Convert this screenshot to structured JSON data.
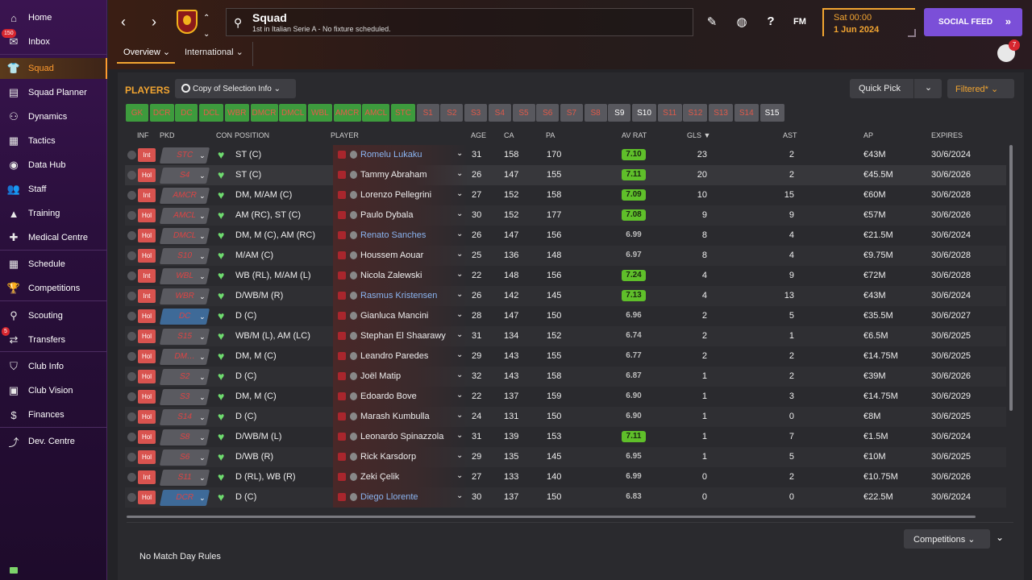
{
  "sidebar": {
    "items": [
      {
        "label": "Home",
        "icon": "home-icon",
        "glyph": "⌂"
      },
      {
        "label": "Inbox",
        "icon": "inbox-icon",
        "glyph": "✉",
        "badge": "150"
      },
      {
        "label": "Squad",
        "icon": "shirt-icon",
        "glyph": "👕",
        "active": true
      },
      {
        "label": "Squad Planner",
        "icon": "clipboard-icon",
        "glyph": "▤"
      },
      {
        "label": "Dynamics",
        "icon": "dynamics-icon",
        "glyph": "⚇"
      },
      {
        "label": "Tactics",
        "icon": "tactics-icon",
        "glyph": "▦"
      },
      {
        "label": "Data Hub",
        "icon": "data-hub-icon",
        "glyph": "◉"
      },
      {
        "label": "Staff",
        "icon": "staff-icon",
        "glyph": "👥"
      },
      {
        "label": "Training",
        "icon": "training-icon",
        "glyph": "▲"
      },
      {
        "label": "Medical Centre",
        "icon": "medical-icon",
        "glyph": "✚"
      },
      {
        "label": "Schedule",
        "icon": "calendar-icon",
        "glyph": "▦"
      },
      {
        "label": "Competitions",
        "icon": "trophy-icon",
        "glyph": "🏆"
      },
      {
        "label": "Scouting",
        "icon": "scouting-icon",
        "glyph": "⚲"
      },
      {
        "label": "Transfers",
        "icon": "transfers-icon",
        "glyph": "⇄",
        "badge": "5"
      },
      {
        "label": "Club Info",
        "icon": "shield-icon",
        "glyph": "⛉"
      },
      {
        "label": "Club Vision",
        "icon": "briefcase-icon",
        "glyph": "▣"
      },
      {
        "label": "Finances",
        "icon": "finances-icon",
        "glyph": "$"
      },
      {
        "label": "Dev. Centre",
        "icon": "dev-centre-icon",
        "glyph": "⤴"
      }
    ]
  },
  "header": {
    "title": "Squad",
    "subtitle": "1st in Italian Serie A - No fixture scheduled.",
    "date_line1": "Sat 00:00",
    "date_line2": "1 Jun 2024",
    "social_label": "SOCIAL FEED",
    "fm_label": "FM",
    "notif_count": "7",
    "tabs": [
      {
        "label": "Overview ⌄",
        "active": true
      },
      {
        "label": "International ⌄",
        "active": false
      }
    ]
  },
  "toolbar": {
    "players_label": "PLAYERS",
    "copy_label": "Copy of Selection Info ⌄",
    "quick_pick": "Quick Pick",
    "filtered": "Filtered* ⌄"
  },
  "chips": [
    {
      "label": "GK",
      "kind": "pos"
    },
    {
      "label": "DCR",
      "kind": "pos"
    },
    {
      "label": "DC",
      "kind": "pos"
    },
    {
      "label": "DCL",
      "kind": "pos"
    },
    {
      "label": "WBR",
      "kind": "pos"
    },
    {
      "label": "DMCR",
      "kind": "pos"
    },
    {
      "label": "DMCL",
      "kind": "pos"
    },
    {
      "label": "WBL",
      "kind": "pos"
    },
    {
      "label": "AMCR",
      "kind": "pos"
    },
    {
      "label": "AMCL",
      "kind": "pos"
    },
    {
      "label": "STC",
      "kind": "pos"
    },
    {
      "label": "S1",
      "kind": "sg"
    },
    {
      "label": "S2",
      "kind": "sg"
    },
    {
      "label": "S3",
      "kind": "sg"
    },
    {
      "label": "S4",
      "kind": "sg"
    },
    {
      "label": "S5",
      "kind": "sg"
    },
    {
      "label": "S6",
      "kind": "sg"
    },
    {
      "label": "S7",
      "kind": "sg"
    },
    {
      "label": "S8",
      "kind": "sg"
    },
    {
      "label": "S9",
      "kind": "sw"
    },
    {
      "label": "S10",
      "kind": "sw"
    },
    {
      "label": "S11",
      "kind": "sg"
    },
    {
      "label": "S12",
      "kind": "sg"
    },
    {
      "label": "S13",
      "kind": "sg"
    },
    {
      "label": "S14",
      "kind": "sg"
    },
    {
      "label": "S15",
      "kind": "sw"
    }
  ],
  "columns": {
    "inf": "INF",
    "pkd": "PKD",
    "con": "CON",
    "position": "POSITION",
    "player": "PLAYER",
    "age": "AGE",
    "ca": "CA",
    "pa": "PA",
    "avrat": "AV RAT",
    "gls": "GLS ▼",
    "ast": "AST",
    "ap": "AP",
    "expires": "EXPIRES"
  },
  "players": [
    {
      "inf": "Int",
      "pkd": "STC",
      "pkdBlue": false,
      "position": "ST (C)",
      "name": "Romelu Lukaku",
      "link": true,
      "age": "31",
      "ca": "158",
      "pa": "170",
      "rat": "7.10",
      "good": true,
      "gls": "23",
      "ast": "2",
      "ap": "€43M",
      "exp": "30/6/2024"
    },
    {
      "inf": "Hol",
      "pkd": "S4",
      "pkdBlue": false,
      "position": "ST (C)",
      "name": "Tammy Abraham",
      "link": false,
      "age": "26",
      "ca": "147",
      "pa": "155",
      "rat": "7.11",
      "good": true,
      "gls": "20",
      "ast": "2",
      "ap": "€45.5M",
      "exp": "30/6/2026"
    },
    {
      "inf": "Int",
      "pkd": "AMCR",
      "pkdBlue": false,
      "position": "DM, M/AM (C)",
      "name": "Lorenzo Pellegrini",
      "link": false,
      "age": "27",
      "ca": "152",
      "pa": "158",
      "rat": "7.09",
      "good": true,
      "gls": "10",
      "ast": "15",
      "ap": "€60M",
      "exp": "30/6/2028"
    },
    {
      "inf": "Hol",
      "pkd": "AMCL",
      "pkdBlue": false,
      "position": "AM (RC), ST (C)",
      "name": "Paulo Dybala",
      "link": false,
      "age": "30",
      "ca": "152",
      "pa": "177",
      "rat": "7.08",
      "good": true,
      "gls": "9",
      "ast": "9",
      "ap": "€57M",
      "exp": "30/6/2026"
    },
    {
      "inf": "Hol",
      "pkd": "DMCL",
      "pkdBlue": false,
      "position": "DM, M (C), AM (RC)",
      "name": "Renato Sanches",
      "link": true,
      "age": "26",
      "ca": "147",
      "pa": "156",
      "rat": "6.99",
      "good": false,
      "gls": "8",
      "ast": "4",
      "ap": "€21.5M",
      "exp": "30/6/2024"
    },
    {
      "inf": "Hol",
      "pkd": "S10",
      "pkdBlue": false,
      "position": "M/AM (C)",
      "name": "Houssem Aouar",
      "link": false,
      "age": "25",
      "ca": "136",
      "pa": "148",
      "rat": "6.97",
      "good": false,
      "gls": "8",
      "ast": "4",
      "ap": "€9.75M",
      "exp": "30/6/2028"
    },
    {
      "inf": "Int",
      "pkd": "WBL",
      "pkdBlue": false,
      "position": "WB (RL), M/AM (L)",
      "name": "Nicola Zalewski",
      "link": false,
      "age": "22",
      "ca": "148",
      "pa": "156",
      "rat": "7.24",
      "good": true,
      "gls": "4",
      "ast": "9",
      "ap": "€72M",
      "exp": "30/6/2028"
    },
    {
      "inf": "Int",
      "pkd": "WBR",
      "pkdBlue": false,
      "position": "D/WB/M (R)",
      "name": "Rasmus Kristensen",
      "link": true,
      "age": "26",
      "ca": "142",
      "pa": "145",
      "rat": "7.13",
      "good": true,
      "gls": "4",
      "ast": "13",
      "ap": "€43M",
      "exp": "30/6/2024"
    },
    {
      "inf": "Hol",
      "pkd": "DC",
      "pkdBlue": true,
      "position": "D (C)",
      "name": "Gianluca Mancini",
      "link": false,
      "age": "28",
      "ca": "147",
      "pa": "150",
      "rat": "6.96",
      "good": false,
      "gls": "2",
      "ast": "5",
      "ap": "€35.5M",
      "exp": "30/6/2027"
    },
    {
      "inf": "Hol",
      "pkd": "S15",
      "pkdBlue": false,
      "position": "WB/M (L), AM (LC)",
      "name": "Stephan El Shaarawy",
      "link": false,
      "age": "31",
      "ca": "134",
      "pa": "152",
      "rat": "6.74",
      "good": false,
      "gls": "2",
      "ast": "1",
      "ap": "€6.5M",
      "exp": "30/6/2025"
    },
    {
      "inf": "Hol",
      "pkd": "DM…",
      "pkdBlue": false,
      "position": "DM, M (C)",
      "name": "Leandro Paredes",
      "link": false,
      "age": "29",
      "ca": "143",
      "pa": "155",
      "rat": "6.77",
      "good": false,
      "gls": "2",
      "ast": "2",
      "ap": "€14.75M",
      "exp": "30/6/2025"
    },
    {
      "inf": "Hol",
      "pkd": "S2",
      "pkdBlue": false,
      "position": "D (C)",
      "name": "Joël Matip",
      "link": false,
      "age": "32",
      "ca": "143",
      "pa": "158",
      "rat": "6.87",
      "good": false,
      "gls": "1",
      "ast": "2",
      "ap": "€39M",
      "exp": "30/6/2026"
    },
    {
      "inf": "Hol",
      "pkd": "S3",
      "pkdBlue": false,
      "position": "DM, M (C)",
      "name": "Edoardo Bove",
      "link": false,
      "age": "22",
      "ca": "137",
      "pa": "159",
      "rat": "6.90",
      "good": false,
      "gls": "1",
      "ast": "3",
      "ap": "€14.75M",
      "exp": "30/6/2029"
    },
    {
      "inf": "Hol",
      "pkd": "S14",
      "pkdBlue": false,
      "position": "D (C)",
      "name": "Marash Kumbulla",
      "link": false,
      "age": "24",
      "ca": "131",
      "pa": "150",
      "rat": "6.90",
      "good": false,
      "gls": "1",
      "ast": "0",
      "ap": "€8M",
      "exp": "30/6/2025"
    },
    {
      "inf": "Hol",
      "pkd": "S8",
      "pkdBlue": false,
      "position": "D/WB/M (L)",
      "name": "Leonardo Spinazzola",
      "link": false,
      "age": "31",
      "ca": "139",
      "pa": "153",
      "rat": "7.11",
      "good": true,
      "gls": "1",
      "ast": "7",
      "ap": "€1.5M",
      "exp": "30/6/2024"
    },
    {
      "inf": "Hol",
      "pkd": "S6",
      "pkdBlue": false,
      "position": "D/WB (R)",
      "name": "Rick Karsdorp",
      "link": false,
      "age": "29",
      "ca": "135",
      "pa": "145",
      "rat": "6.95",
      "good": false,
      "gls": "1",
      "ast": "5",
      "ap": "€10M",
      "exp": "30/6/2025"
    },
    {
      "inf": "Int",
      "pkd": "S11",
      "pkdBlue": false,
      "position": "D (RL), WB (R)",
      "name": "Zeki Çelik",
      "link": false,
      "age": "27",
      "ca": "133",
      "pa": "140",
      "rat": "6.99",
      "good": false,
      "gls": "0",
      "ast": "2",
      "ap": "€10.75M",
      "exp": "30/6/2026"
    },
    {
      "inf": "Hol",
      "pkd": "DCR",
      "pkdBlue": true,
      "position": "D (C)",
      "name": "Diego Llorente",
      "link": true,
      "age": "30",
      "ca": "137",
      "pa": "150",
      "rat": "6.83",
      "good": false,
      "gls": "0",
      "ast": "0",
      "ap": "€22.5M",
      "exp": "30/6/2024"
    }
  ],
  "footer": {
    "competitions": "Competitions ⌄",
    "no_match_rules": "No Match Day Rules"
  },
  "colors": {
    "accent": "#f2a531",
    "social": "#7b4fd8",
    "rating_good": "#5fbf2a",
    "sidebar": "#3a1450"
  }
}
